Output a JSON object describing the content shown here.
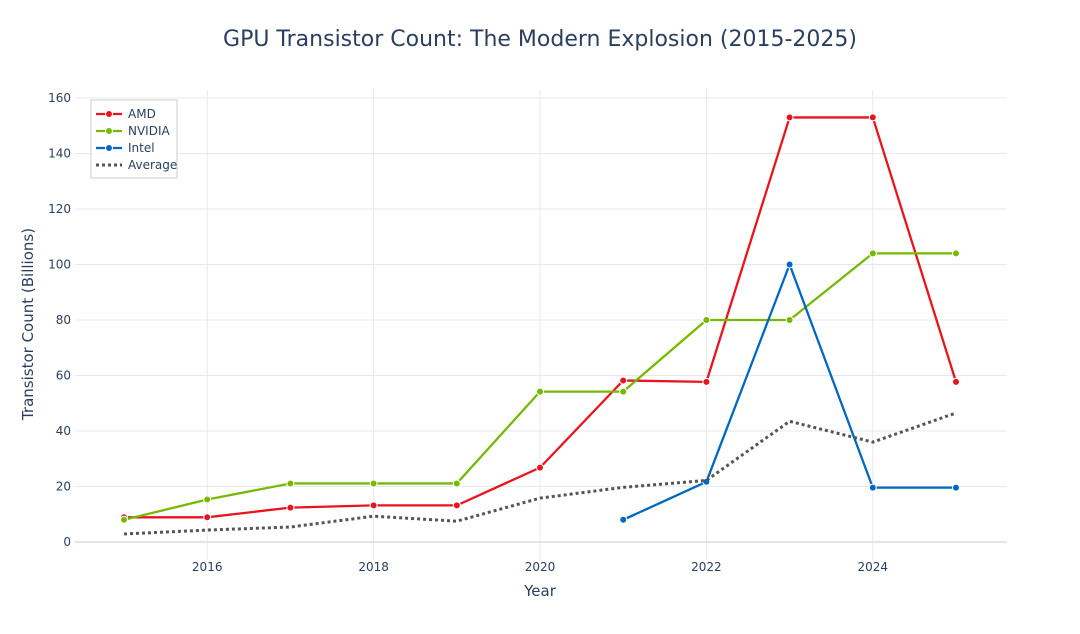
{
  "chart_data": {
    "type": "line",
    "title": "GPU Transistor Count: The Modern Explosion (2015-2025)",
    "xlabel": "Year",
    "ylabel": "Transistor Count (Billions)",
    "xlim": [
      2014.4,
      2025.6
    ],
    "ylim": [
      -5,
      163
    ],
    "xticks": [
      2016,
      2018,
      2020,
      2022,
      2024
    ],
    "yticks": [
      0,
      20,
      40,
      60,
      80,
      100,
      120,
      140,
      160
    ],
    "grid": true,
    "legend_position": "top-left",
    "series": [
      {
        "name": "AMD",
        "color": "#e8141e",
        "dash": "solid",
        "markers": true,
        "x": [
          2015,
          2016,
          2017,
          2018,
          2019,
          2020,
          2021,
          2022,
          2023,
          2024,
          2025
        ],
        "y": [
          8.9,
          8.9,
          12.4,
          13.2,
          13.2,
          26.8,
          58.2,
          57.7,
          153,
          153,
          57.7
        ]
      },
      {
        "name": "NVIDIA",
        "color": "#76b900",
        "dash": "solid",
        "markers": true,
        "x": [
          2015,
          2016,
          2017,
          2018,
          2019,
          2020,
          2021,
          2022,
          2023,
          2024,
          2025
        ],
        "y": [
          8,
          15.3,
          21.1,
          21.1,
          21.1,
          54.2,
          54.2,
          80,
          80,
          104,
          104
        ]
      },
      {
        "name": "Intel",
        "color": "#0068c4",
        "dash": "solid",
        "markers": true,
        "x": [
          2021,
          2022,
          2023,
          2024,
          2025
        ],
        "y": [
          8,
          21.7,
          100,
          19.6,
          19.6
        ]
      },
      {
        "name": "Average",
        "color": "#555555",
        "dash": "dot",
        "markers": false,
        "x": [
          2015,
          2016,
          2017,
          2018,
          2019,
          2020,
          2021,
          2022,
          2023,
          2024,
          2025
        ],
        "y": [
          2.9,
          4.3,
          5.4,
          9.3,
          7.5,
          15.8,
          19.7,
          22.2,
          43.5,
          36,
          46.5
        ]
      }
    ]
  }
}
